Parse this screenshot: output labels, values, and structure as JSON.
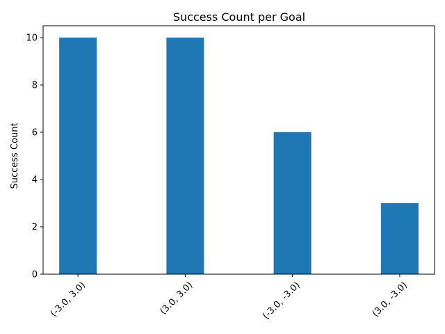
{
  "chart_data": {
    "type": "bar",
    "title": "Success Count per Goal",
    "xlabel": "",
    "ylabel": "Success Count",
    "categories": [
      "(-3.0, 3.0)",
      "(3.0, 3.0)",
      "(-3.0, -3.0)",
      "(3.0, -3.0)"
    ],
    "values": [
      10,
      10,
      6,
      3
    ],
    "ylim": [
      0,
      10.5
    ],
    "yticks": [
      0,
      2,
      4,
      6,
      8,
      10
    ],
    "x_tick_rotation_deg": 45,
    "bar_color": "#1f77b4",
    "grid": false,
    "legend": "none"
  }
}
